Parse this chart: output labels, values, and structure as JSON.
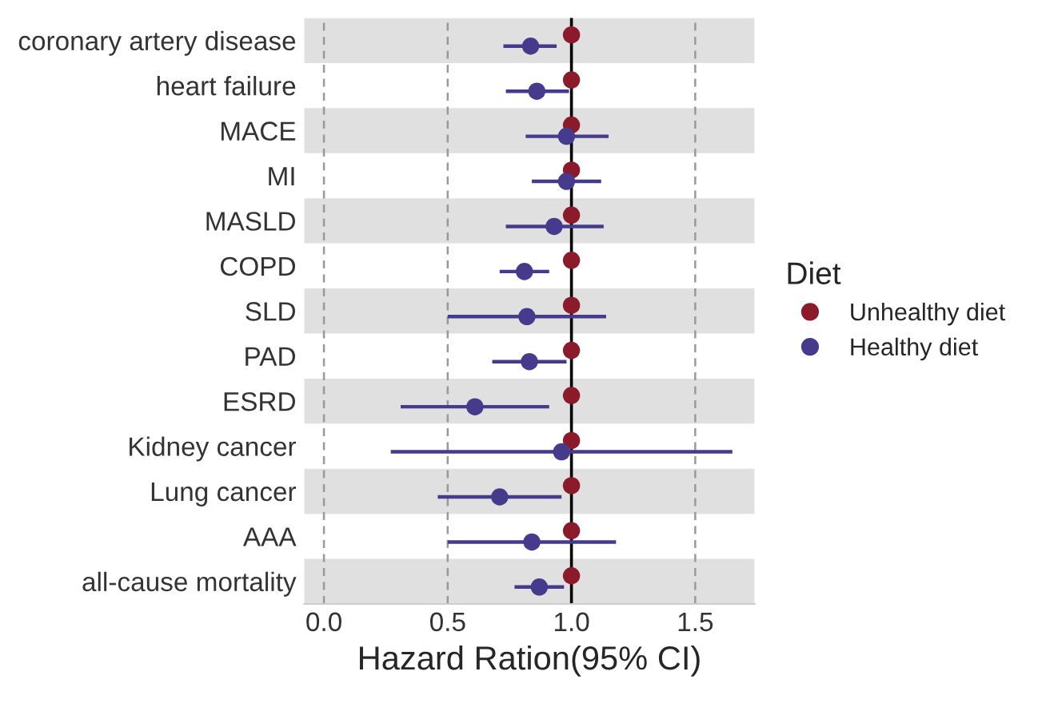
{
  "chart_data": {
    "type": "scatter",
    "orientation": "horizontal",
    "xlabel": "Hazard Ration(95% CI)",
    "legend_title": "Diet",
    "legend": "right",
    "grid": "x",
    "marker": "circle",
    "categories": [
      "coronary artery disease",
      "heart failure",
      "MACE",
      "MI",
      "MASLD",
      "COPD",
      "SLD",
      "PAD",
      "ESRD",
      "Kidney cancer",
      "Lung cancer",
      "AAA",
      "all-cause mortality"
    ],
    "xlim": [
      -0.08,
      1.74
    ],
    "xticks": [
      {
        "value": 0,
        "label": "0.0"
      },
      0.5,
      {
        "value": 1,
        "label": "1.0"
      },
      1.5
    ],
    "ref_lines": [
      {
        "axis": "x",
        "value": 1,
        "color": "#000000"
      }
    ],
    "series": [
      {
        "name": "Unhealthy diet",
        "color": "#8b1a2b",
        "values": [
          1,
          1,
          1,
          1,
          1,
          1,
          1,
          1,
          1,
          1,
          1,
          1,
          1
        ]
      },
      {
        "name": "Healthy diet",
        "color": "#453a8c",
        "values": [
          0.835,
          0.86,
          0.98,
          0.98,
          0.93,
          0.81,
          0.82,
          0.83,
          0.61,
          0.96,
          0.71,
          0.84,
          0.87
        ],
        "errors": [
          [
            0.725,
            0.94
          ],
          [
            0.735,
            0.99
          ],
          [
            0.815,
            1.15
          ],
          [
            0.84,
            1.12
          ],
          [
            0.735,
            1.13
          ],
          [
            0.71,
            0.91
          ],
          [
            0.5,
            1.14
          ],
          [
            0.68,
            0.98
          ],
          [
            0.31,
            0.91
          ],
          [
            0.27,
            1.65
          ],
          [
            0.46,
            0.96
          ],
          [
            0.5,
            1.18
          ],
          [
            0.77,
            0.97
          ]
        ]
      }
    ]
  }
}
